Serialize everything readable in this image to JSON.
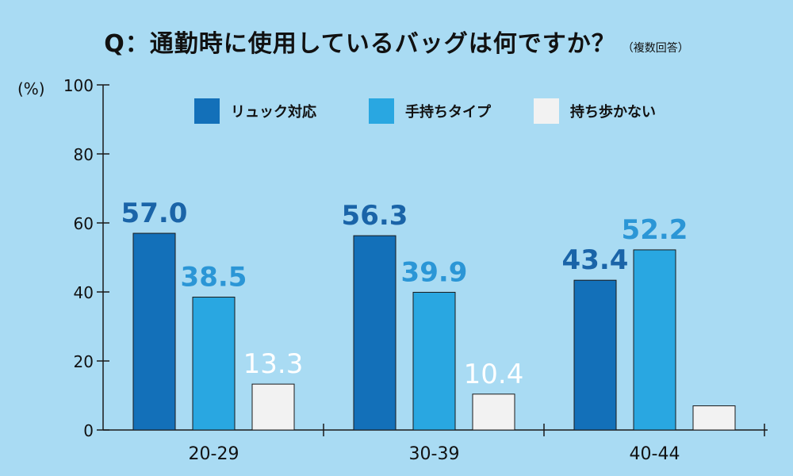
{
  "chart_data": {
    "type": "bar",
    "title": "Q：通勤時に使用しているバッグは何ですか？",
    "subtitle": "（複数回答）",
    "ylabel": "(%)",
    "xlabel": "",
    "ylim": [
      0,
      100
    ],
    "yticks": [
      0,
      20,
      40,
      60,
      80,
      100
    ],
    "categories": [
      "20-29",
      "30-39",
      "40-44"
    ],
    "series": [
      {
        "name": "リュック対応",
        "values": [
          57.0,
          56.3,
          43.4
        ],
        "labels": [
          "57.0",
          "56.3",
          "43.4"
        ],
        "color": "#1370b9",
        "label_color": "#1a64a8"
      },
      {
        "name": "手持ちタイプ",
        "values": [
          38.5,
          39.9,
          52.2
        ],
        "labels": [
          "38.5",
          "39.9",
          "52.2"
        ],
        "color": "#29a7e1",
        "label_color": "#2b96d6"
      },
      {
        "name": "持ち歩かない",
        "values": [
          13.3,
          10.4,
          7.0
        ],
        "labels": [
          "13.3",
          "10.4",
          ""
        ],
        "color": "#f2f2f2",
        "label_color": "#ffffff"
      }
    ],
    "grid": false,
    "legend_position": "top"
  }
}
